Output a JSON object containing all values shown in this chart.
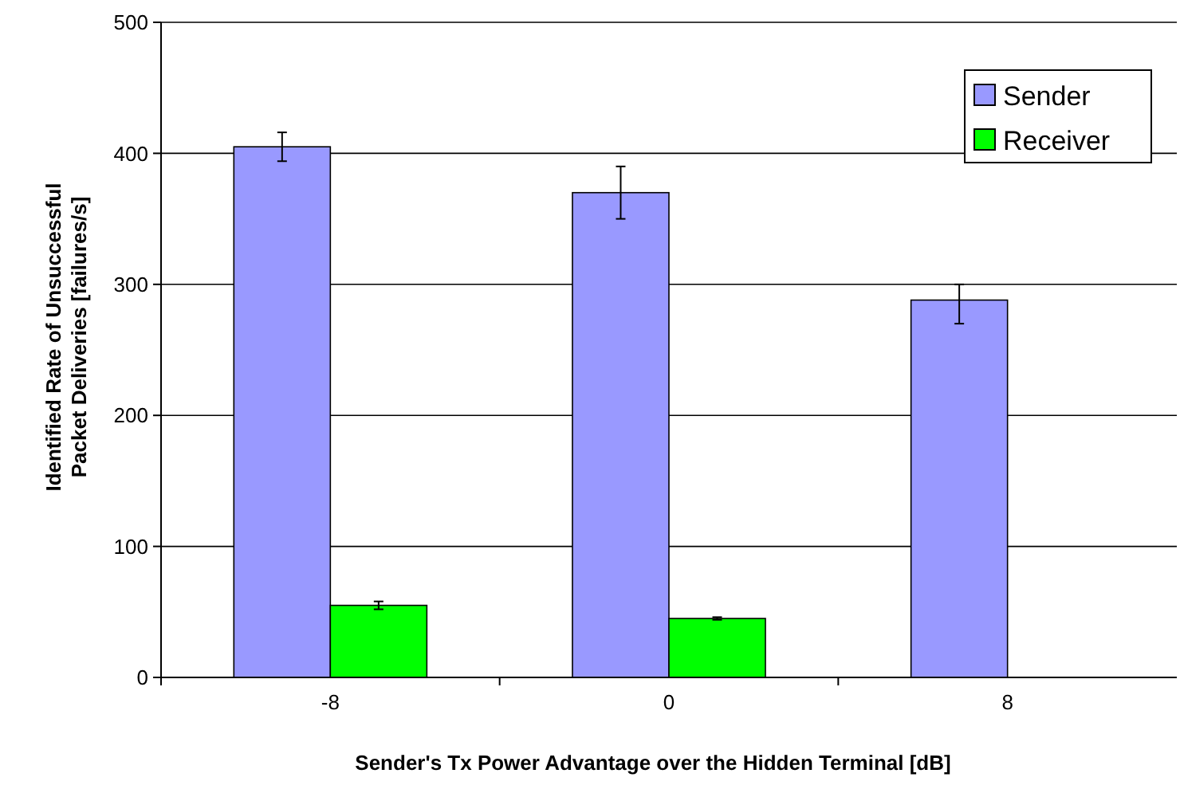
{
  "chart_data": {
    "type": "bar",
    "xlabel": "Sender's Tx Power Advantage over the Hidden Terminal [dB]",
    "ylabel": "Identified Rate of Unsuccessful Packet Deliveries [failures/s]",
    "categories": [
      "-8",
      "0",
      "8"
    ],
    "series": [
      {
        "name": "Sender",
        "color": "#9999ff",
        "values": [
          405,
          370,
          288
        ],
        "errors": [
          11,
          20,
          [
            270,
            300
          ]
        ]
      },
      {
        "name": "Receiver",
        "color": "#00ff00",
        "values": [
          55,
          45,
          0
        ],
        "errors": [
          3,
          1,
          null
        ]
      }
    ],
    "ylim": [
      0,
      500
    ],
    "yticks": [
      0,
      100,
      200,
      300,
      400,
      500
    ],
    "grid": "y",
    "legend": "top right"
  }
}
